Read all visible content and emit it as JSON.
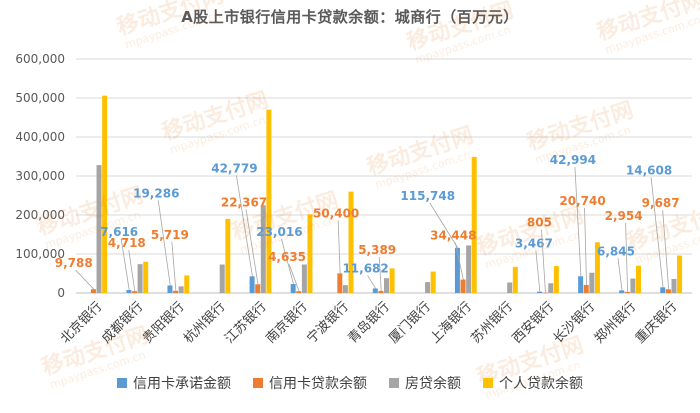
{
  "chart_data": {
    "type": "bar",
    "title": "A股上市银行信用卡贷款余额：城商行（百万元）",
    "categories": [
      "北京银行",
      "成都银行",
      "贵阳银行",
      "杭州银行",
      "江苏银行",
      "南京银行",
      "宁波银行",
      "青岛银行",
      "厦门银行",
      "上海银行",
      "苏州银行",
      "西安银行",
      "长沙银行",
      "郑州银行",
      "重庆银行"
    ],
    "ylim": [
      0,
      600000
    ],
    "yticks": [
      "0",
      "100,000",
      "200,000",
      "300,000",
      "400,000",
      "500,000",
      "600,000"
    ],
    "grid": true,
    "legend_position": "bottom",
    "series": [
      {
        "name": "信用卡承诺金额",
        "color": "#5B9BD5",
        "values": [
          null,
          7616,
          19286,
          null,
          42779,
          23016,
          null,
          11682,
          null,
          115748,
          null,
          3467,
          42994,
          6845,
          14608
        ]
      },
      {
        "name": "信用卡贷款余额",
        "color": "#ED7D31",
        "values": [
          9788,
          4718,
          5719,
          null,
          22367,
          4635,
          50400,
          5389,
          null,
          34448,
          null,
          805,
          20740,
          2954,
          9687
        ]
      },
      {
        "name": "房贷余额",
        "color": "#A5A5A5",
        "values": [
          328000,
          74000,
          17000,
          73000,
          225000,
          73000,
          20000,
          38000,
          28000,
          122000,
          27000,
          25000,
          52000,
          37000,
          36000
        ]
      },
      {
        "name": "个人贷款余额",
        "color": "#FFC000",
        "values": [
          506000,
          80000,
          45000,
          190000,
          470000,
          202000,
          260000,
          63000,
          55000,
          349000,
          67000,
          69000,
          130000,
          70000,
          96000
        ]
      }
    ],
    "data_labels": [
      {
        "series": 1,
        "category": 0,
        "text": "9,788"
      },
      {
        "series": 0,
        "category": 1,
        "text": "7,616"
      },
      {
        "series": 1,
        "category": 1,
        "text": "4,718"
      },
      {
        "series": 0,
        "category": 2,
        "text": "19,286"
      },
      {
        "series": 1,
        "category": 2,
        "text": "5,719"
      },
      {
        "series": 0,
        "category": 4,
        "text": "42,779"
      },
      {
        "series": 1,
        "category": 4,
        "text": "22,367"
      },
      {
        "series": 0,
        "category": 5,
        "text": "23,016"
      },
      {
        "series": 1,
        "category": 5,
        "text": "4,635"
      },
      {
        "series": 1,
        "category": 6,
        "text": "50,400"
      },
      {
        "series": 0,
        "category": 7,
        "text": "11,682"
      },
      {
        "series": 1,
        "category": 7,
        "text": "5,389"
      },
      {
        "series": 0,
        "category": 9,
        "text": "115,748"
      },
      {
        "series": 1,
        "category": 9,
        "text": "34,448"
      },
      {
        "series": 0,
        "category": 11,
        "text": "3,467"
      },
      {
        "series": 1,
        "category": 11,
        "text": "805"
      },
      {
        "series": 0,
        "category": 12,
        "text": "42,994"
      },
      {
        "series": 1,
        "category": 12,
        "text": "20,740"
      },
      {
        "series": 0,
        "category": 13,
        "text": "6,845"
      },
      {
        "series": 1,
        "category": 13,
        "text": "2,954"
      },
      {
        "series": 0,
        "category": 14,
        "text": "14,608"
      },
      {
        "series": 1,
        "category": 14,
        "text": "9,687"
      }
    ]
  },
  "watermark": {
    "brand": "移动支付网",
    "url": "mpaypass.com.cn"
  }
}
